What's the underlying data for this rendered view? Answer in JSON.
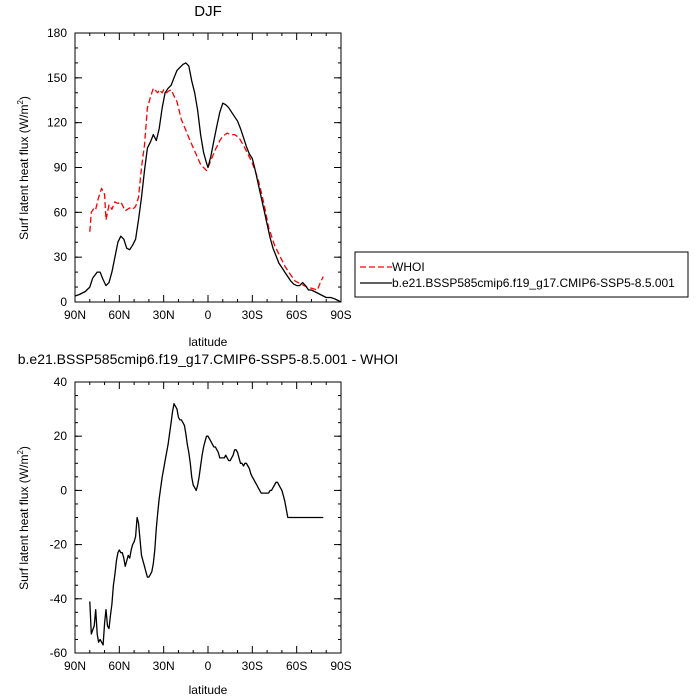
{
  "chart_data": [
    {
      "type": "line",
      "title": "DJF",
      "xlabel": "latitude",
      "ylabel": "Surf latent heat flux (W/m",
      "ylabel_sup": "2",
      "ylabel_close": ")",
      "xlim": [
        90,
        -90
      ],
      "ylim": [
        0,
        180
      ],
      "xticks": [
        90,
        60,
        30,
        0,
        -30,
        -60,
        -90
      ],
      "xtick_labels": [
        "90N",
        "60N",
        "30N",
        "0",
        "30S",
        "60S",
        "90S"
      ],
      "yticks": [
        0,
        30,
        60,
        90,
        120,
        150,
        180
      ],
      "ytick_labels": [
        "0",
        "30",
        "60",
        "90",
        "120",
        "150",
        "180"
      ],
      "legend_position": "right",
      "series": [
        {
          "name": "WHOI",
          "color": "#ff0000",
          "dash": "dashed",
          "x": [
            80,
            79,
            77,
            76,
            74,
            73,
            72,
            70,
            69,
            67,
            65,
            63,
            61,
            59,
            56,
            53,
            51,
            49,
            47,
            45,
            43,
            41,
            39,
            37,
            34,
            33,
            31,
            30,
            28,
            27,
            25,
            23,
            21,
            18,
            15,
            13,
            9,
            5,
            1,
            0,
            -2,
            -5,
            -8,
            -10,
            -13,
            -15,
            -18,
            -21,
            -25,
            -30,
            -34,
            -38,
            -41,
            -45,
            -49,
            -52,
            -56,
            -59,
            -63,
            -67,
            -71,
            -74,
            -76,
            -78
          ],
          "values": [
            47,
            60,
            63,
            62,
            70,
            73,
            76,
            72,
            55,
            65,
            62,
            67,
            66,
            67,
            61,
            63,
            62,
            64,
            70,
            90,
            105,
            130,
            137,
            143,
            140,
            142,
            140,
            142,
            140,
            141,
            142,
            138,
            134,
            122,
            115,
            110,
            101,
            92,
            88,
            90,
            95,
            102,
            108,
            111,
            113,
            112,
            112,
            110,
            103,
            93,
            82,
            65,
            50,
            38,
            30,
            24,
            18,
            14,
            12,
            10,
            9,
            8,
            13,
            17
          ]
        },
        {
          "name": "b.e21.BSSP585cmip6.f19_g17.CMIP6-SSP5-8.5.001",
          "color": "#000000",
          "dash": "solid",
          "x": [
            90,
            87,
            83,
            80,
            78,
            75,
            73,
            71,
            69,
            67,
            65,
            63,
            61,
            59,
            57,
            55,
            53,
            51,
            49,
            47,
            45,
            43,
            41,
            39,
            37,
            35,
            33,
            31,
            29,
            27,
            25,
            23,
            21,
            19,
            17,
            15,
            13,
            11,
            9,
            7,
            5,
            3,
            1,
            0,
            -2,
            -4,
            -6,
            -8,
            -10,
            -12,
            -14,
            -16,
            -18,
            -20,
            -22,
            -24,
            -26,
            -28,
            -30,
            -32,
            -34,
            -36,
            -38,
            -40,
            -42,
            -44,
            -46,
            -48,
            -50,
            -52,
            -54,
            -56,
            -58,
            -60,
            -62,
            -64,
            -66,
            -68,
            -70,
            -72,
            -74,
            -76,
            -78,
            -80,
            -83,
            -86,
            -90
          ],
          "values": [
            4,
            5,
            7,
            10,
            16,
            20,
            20,
            15,
            11,
            13,
            20,
            30,
            40,
            44,
            42,
            36,
            35,
            38,
            42,
            55,
            70,
            88,
            103,
            107,
            112,
            108,
            116,
            130,
            140,
            143,
            145,
            150,
            155,
            157,
            159,
            160,
            158,
            148,
            140,
            128,
            112,
            100,
            93,
            90,
            98,
            108,
            118,
            127,
            133,
            132,
            130,
            127,
            124,
            121,
            116,
            110,
            104,
            99,
            96,
            88,
            79,
            70,
            61,
            52,
            43,
            36,
            31,
            26,
            23,
            20,
            17,
            14,
            12,
            11,
            11,
            13,
            11,
            8,
            8,
            7,
            6,
            5,
            4,
            3,
            3,
            2,
            0
          ]
        }
      ]
    },
    {
      "type": "line",
      "title": "b.e21.BSSP585cmip6.f19_g17.CMIP6-SSP5-8.5.001 - WHOI",
      "xlabel": "latitude",
      "ylabel": "Surf latent heat flux (W/m",
      "ylabel_sup": "2",
      "ylabel_close": ")",
      "xlim": [
        90,
        -90
      ],
      "ylim": [
        -60,
        40
      ],
      "xticks": [
        90,
        60,
        30,
        0,
        -30,
        -60,
        -90
      ],
      "xtick_labels": [
        "90N",
        "60N",
        "30N",
        "0",
        "30S",
        "60S",
        "90S"
      ],
      "yticks": [
        -60,
        -40,
        -20,
        0,
        20,
        40
      ],
      "ytick_labels": [
        "-60",
        "-40",
        "-20",
        "0",
        "20",
        "40"
      ],
      "series": [
        {
          "color": "#000000",
          "dash": "solid",
          "x": [
            80,
            79,
            77,
            76,
            75,
            74,
            73,
            72,
            71,
            70,
            69,
            68,
            67,
            66,
            65,
            64,
            63,
            62,
            61,
            60,
            59,
            58,
            57,
            56,
            55,
            54,
            53,
            52,
            51,
            50,
            49,
            48,
            47,
            46,
            45,
            44,
            43,
            42,
            41,
            40,
            39,
            38,
            37,
            36,
            35,
            34,
            33,
            32,
            31,
            30,
            29,
            28,
            27,
            26,
            25,
            24,
            23,
            22,
            21,
            20,
            19,
            18,
            17,
            16,
            15,
            14,
            13,
            12,
            11,
            10,
            9,
            8,
            7,
            6,
            5,
            4,
            3,
            2,
            1,
            0,
            -1,
            -2,
            -3,
            -4,
            -5,
            -6,
            -7,
            -8,
            -9,
            -10,
            -11,
            -12,
            -13,
            -14,
            -15,
            -16,
            -17,
            -18,
            -19,
            -20,
            -21,
            -22,
            -23,
            -24,
            -25,
            -26,
            -27,
            -28,
            -29,
            -30,
            -31,
            -32,
            -33,
            -34,
            -35,
            -36,
            -37,
            -38,
            -39,
            -40,
            -41,
            -42,
            -43,
            -44,
            -45,
            -46,
            -47,
            -48,
            -49,
            -50,
            -51,
            -52,
            -53,
            -54,
            -55,
            -56,
            -57,
            -58,
            -59,
            -60,
            -61,
            -62,
            -63,
            -64,
            -65,
            -66,
            -67,
            -68,
            -69,
            -70,
            -71,
            -72,
            -73,
            -74,
            -75,
            -76,
            -77,
            -78
          ],
          "values": [
            -41,
            -53,
            -50,
            -44,
            -53,
            -56,
            -55,
            -56,
            -57,
            -49,
            -44,
            -50,
            -51,
            -46,
            -42,
            -35,
            -31,
            -26,
            -23,
            -22,
            -23,
            -23,
            -25,
            -28,
            -26,
            -24,
            -25,
            -22,
            -20,
            -19,
            -17,
            -10,
            -12,
            -18,
            -24,
            -26,
            -28,
            -30,
            -32,
            -32,
            -31,
            -30,
            -27,
            -22,
            -14,
            -8,
            -3,
            1,
            5,
            8,
            11,
            14,
            17,
            21,
            25,
            29,
            32,
            31,
            30,
            27,
            26,
            26,
            25,
            24,
            21,
            17,
            14,
            10,
            5,
            2,
            1,
            0,
            2,
            5,
            9,
            13,
            16,
            18,
            20,
            20,
            19,
            18,
            17,
            16,
            16,
            15,
            14,
            12,
            12,
            12,
            12,
            13,
            12,
            11,
            11,
            12,
            13,
            15,
            15,
            14,
            12,
            10,
            10,
            9,
            10,
            10,
            9,
            8,
            6,
            5,
            4,
            3,
            2,
            1,
            0,
            -1,
            -1,
            -1,
            -1,
            -1,
            -1,
            0,
            0,
            1,
            2,
            3,
            3,
            2,
            1,
            0,
            -2,
            -4,
            -7,
            -10,
            -10,
            -10,
            -10,
            -10,
            -10,
            -10,
            -10,
            -10,
            -10,
            -10,
            -10,
            -10,
            -10,
            -10,
            -10,
            -10,
            -10,
            -10,
            -10,
            -10,
            -10,
            -10,
            -10,
            -10
          ]
        }
      ]
    }
  ]
}
